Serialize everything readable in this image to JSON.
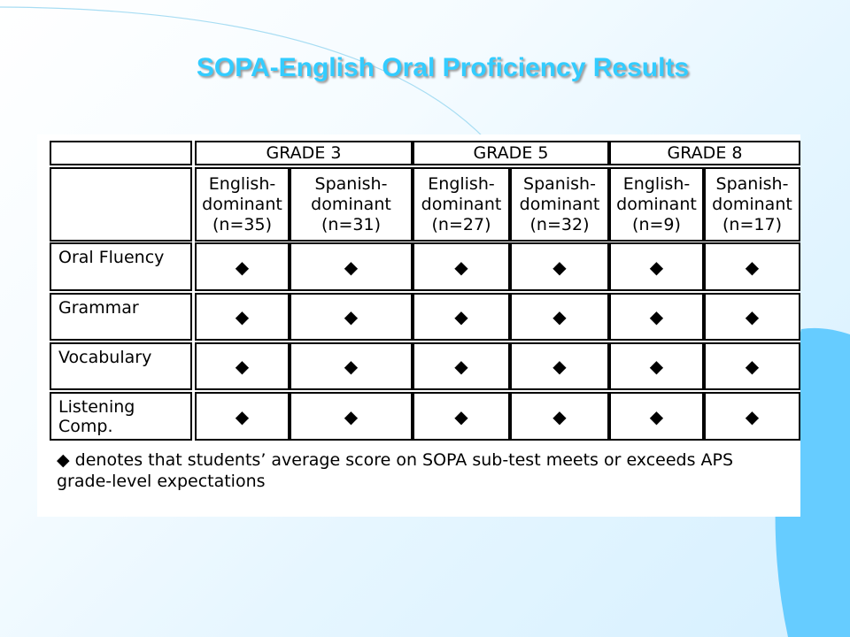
{
  "slide": {
    "title": "SOPA-English Oral Proficiency Results",
    "colors": {
      "title": "#33ccff",
      "accent": "#66ccff"
    }
  },
  "table": {
    "grades": [
      "GRADE 3",
      "GRADE 5",
      "GRADE 8"
    ],
    "subgroups": [
      [
        "English-",
        "dominant",
        "(n=35)"
      ],
      [
        "Spanish-",
        "dominant",
        "(n=31)"
      ],
      [
        "English-",
        "dominant",
        "(n=27)"
      ],
      [
        "Spanish-",
        "dominant",
        "(n=32)"
      ],
      [
        "English-",
        "dominant",
        "(n=9)"
      ],
      [
        "Spanish-",
        "dominant",
        "(n=17)"
      ]
    ],
    "rows": [
      {
        "label": [
          "Oral Fluency"
        ],
        "marks": [
          "◆",
          "◆",
          "◆",
          "◆",
          "◆",
          "◆"
        ]
      },
      {
        "label": [
          "Grammar"
        ],
        "marks": [
          "◆",
          "◆",
          "◆",
          "◆",
          "◆",
          "◆"
        ]
      },
      {
        "label": [
          "Vocabulary"
        ],
        "marks": [
          "◆",
          "◆",
          "◆",
          "◆",
          "◆",
          "◆"
        ]
      },
      {
        "label": [
          "Listening",
          "Comp."
        ],
        "marks": [
          "◆",
          "◆",
          "◆",
          "◆",
          "◆",
          "◆"
        ]
      }
    ]
  },
  "legend": {
    "symbol": "◆",
    "text": "denotes that students’ average score on SOPA sub-test meets or exceeds APS grade-level expectations"
  }
}
